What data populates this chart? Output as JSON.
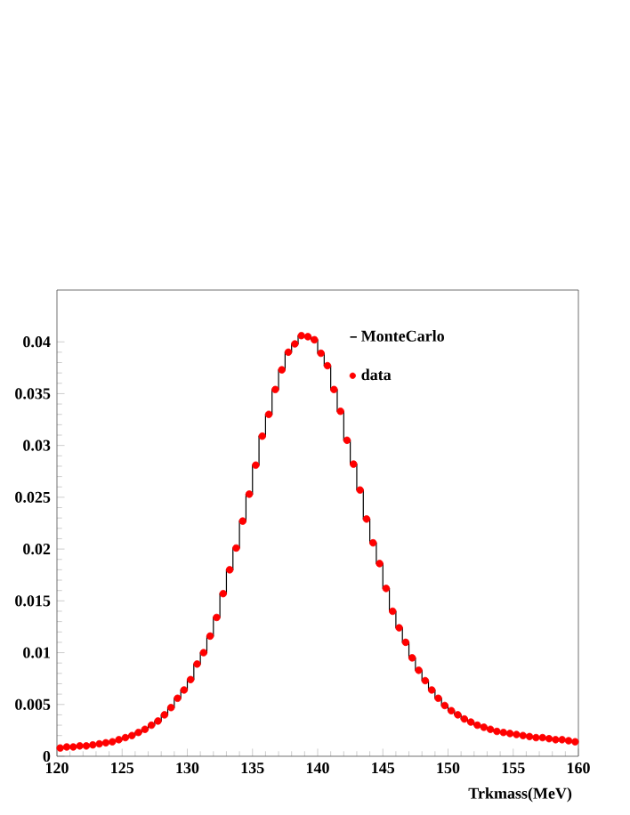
{
  "chart_data": {
    "type": "histogram",
    "xlabel": "Trkmass(MeV)",
    "bins": [
      120,
      120.5,
      121,
      121.5,
      122,
      122.5,
      123,
      123.5,
      124,
      124.5,
      125,
      125.5,
      126,
      126.5,
      127,
      127.5,
      128,
      128.5,
      129,
      129.5,
      130,
      130.5,
      131,
      131.5,
      132,
      132.5,
      133,
      133.5,
      134,
      134.5,
      135,
      135.5,
      136,
      136.5,
      137,
      137.5,
      138,
      138.5,
      139,
      139.5,
      140,
      140.5,
      141,
      141.5,
      142,
      142.5,
      143,
      143.5,
      144,
      144.5,
      145,
      145.5,
      146,
      146.5,
      147,
      147.5,
      148,
      148.5,
      149,
      149.5,
      150,
      150.5,
      151,
      151.5,
      152,
      152.5,
      153,
      153.5,
      154,
      154.5,
      155,
      155.5,
      156,
      156.5,
      157,
      157.5,
      158,
      158.5,
      159,
      159.5,
      160
    ],
    "series": [
      {
        "name": "MonteCarlo",
        "color": "#000000",
        "values": [
          0.0008,
          0.0009,
          0.0009,
          0.001,
          0.001,
          0.0011,
          0.0012,
          0.0013,
          0.0014,
          0.0016,
          0.0018,
          0.002,
          0.0023,
          0.0026,
          0.003,
          0.0034,
          0.004,
          0.0047,
          0.0056,
          0.0064,
          0.0074,
          0.0089,
          0.01,
          0.0116,
          0.0134,
          0.0157,
          0.018,
          0.0201,
          0.0227,
          0.0253,
          0.0281,
          0.0309,
          0.033,
          0.0354,
          0.0373,
          0.039,
          0.0398,
          0.0406,
          0.0405,
          0.0402,
          0.0389,
          0.0377,
          0.0354,
          0.0333,
          0.0305,
          0.0282,
          0.0257,
          0.0229,
          0.0206,
          0.0186,
          0.0162,
          0.014,
          0.0124,
          0.011,
          0.0095,
          0.0083,
          0.0073,
          0.0064,
          0.0056,
          0.0049,
          0.0044,
          0.004,
          0.0036,
          0.0033,
          0.003,
          0.0028,
          0.0026,
          0.0024,
          0.0023,
          0.0022,
          0.0021,
          0.002,
          0.0019,
          0.0018,
          0.0018,
          0.0017,
          0.0016,
          0.0016,
          0.0015,
          0.0014
        ]
      },
      {
        "name": "data",
        "type": "scatter",
        "color": "#ff0000",
        "marker": "circle",
        "x": [
          120.25,
          120.75,
          121.25,
          121.75,
          122.25,
          122.75,
          123.25,
          123.75,
          124.25,
          124.75,
          125.25,
          125.75,
          126.25,
          126.75,
          127.25,
          127.75,
          128.25,
          128.75,
          129.25,
          129.75,
          130.25,
          130.75,
          131.25,
          131.75,
          132.25,
          132.75,
          133.25,
          133.75,
          134.25,
          134.75,
          135.25,
          135.75,
          136.25,
          136.75,
          137.25,
          137.75,
          138.25,
          138.75,
          139.25,
          139.75,
          140.25,
          140.75,
          141.25,
          141.75,
          142.25,
          142.75,
          143.25,
          143.75,
          144.25,
          144.75,
          145.25,
          145.75,
          146.25,
          146.75,
          147.25,
          147.75,
          148.25,
          148.75,
          149.25,
          149.75,
          150.25,
          150.75,
          151.25,
          151.75,
          152.25,
          152.75,
          153.25,
          153.75,
          154.25,
          154.75,
          155.25,
          155.75,
          156.25,
          156.75,
          157.25,
          157.75,
          158.25,
          158.75,
          159.25,
          159.75
        ],
        "values": [
          0.0008,
          0.0009,
          0.0009,
          0.001,
          0.001,
          0.0011,
          0.0012,
          0.0013,
          0.0014,
          0.0016,
          0.0018,
          0.002,
          0.0023,
          0.0026,
          0.003,
          0.0034,
          0.004,
          0.0047,
          0.0056,
          0.0064,
          0.0074,
          0.0089,
          0.01,
          0.0116,
          0.0134,
          0.0157,
          0.018,
          0.0201,
          0.0227,
          0.0253,
          0.0281,
          0.0309,
          0.033,
          0.0354,
          0.0373,
          0.039,
          0.0398,
          0.0406,
          0.0405,
          0.0402,
          0.0389,
          0.0377,
          0.0354,
          0.0333,
          0.0305,
          0.0282,
          0.0257,
          0.0229,
          0.0206,
          0.0186,
          0.0162,
          0.014,
          0.0124,
          0.011,
          0.0095,
          0.0083,
          0.0073,
          0.0064,
          0.0056,
          0.0049,
          0.0044,
          0.004,
          0.0036,
          0.0033,
          0.003,
          0.0028,
          0.0026,
          0.0024,
          0.0023,
          0.0022,
          0.0021,
          0.002,
          0.0019,
          0.0018,
          0.0018,
          0.0017,
          0.0016,
          0.0016,
          0.0015,
          0.0014
        ]
      }
    ],
    "xlim": [
      120,
      160
    ],
    "ylim": [
      0,
      0.045
    ],
    "xticks": [
      120,
      125,
      130,
      135,
      140,
      145,
      150,
      155,
      160
    ],
    "yticks": [
      0,
      0.005,
      0.01,
      0.015,
      0.02,
      0.025,
      0.03,
      0.035,
      0.04
    ],
    "grid": false,
    "legend": "top right"
  }
}
